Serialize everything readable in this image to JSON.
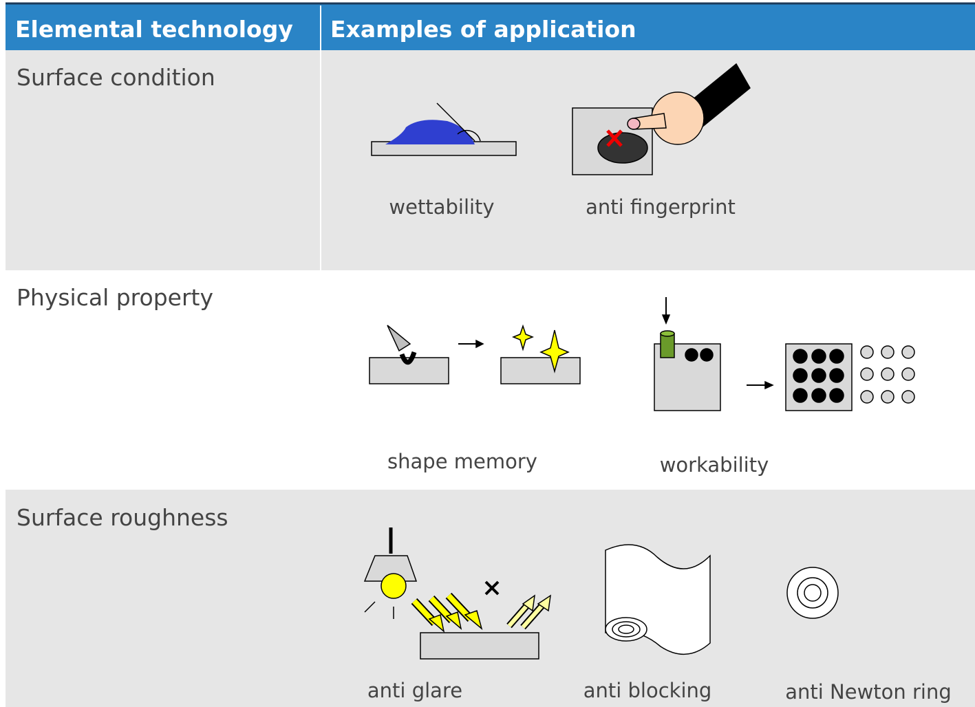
{
  "table": {
    "header": [
      "Elemental technology",
      "Examples of application"
    ],
    "rows": [
      {
        "technology": "Surface condition",
        "examples": [
          "wettability",
          "anti fingerprint"
        ]
      },
      {
        "technology": "Physical property",
        "examples": [
          "shape memory",
          "workability"
        ]
      },
      {
        "technology": "Surface roughness",
        "examples": [
          "anti glare",
          "anti blocking",
          "anti Newton ring"
        ]
      }
    ]
  }
}
